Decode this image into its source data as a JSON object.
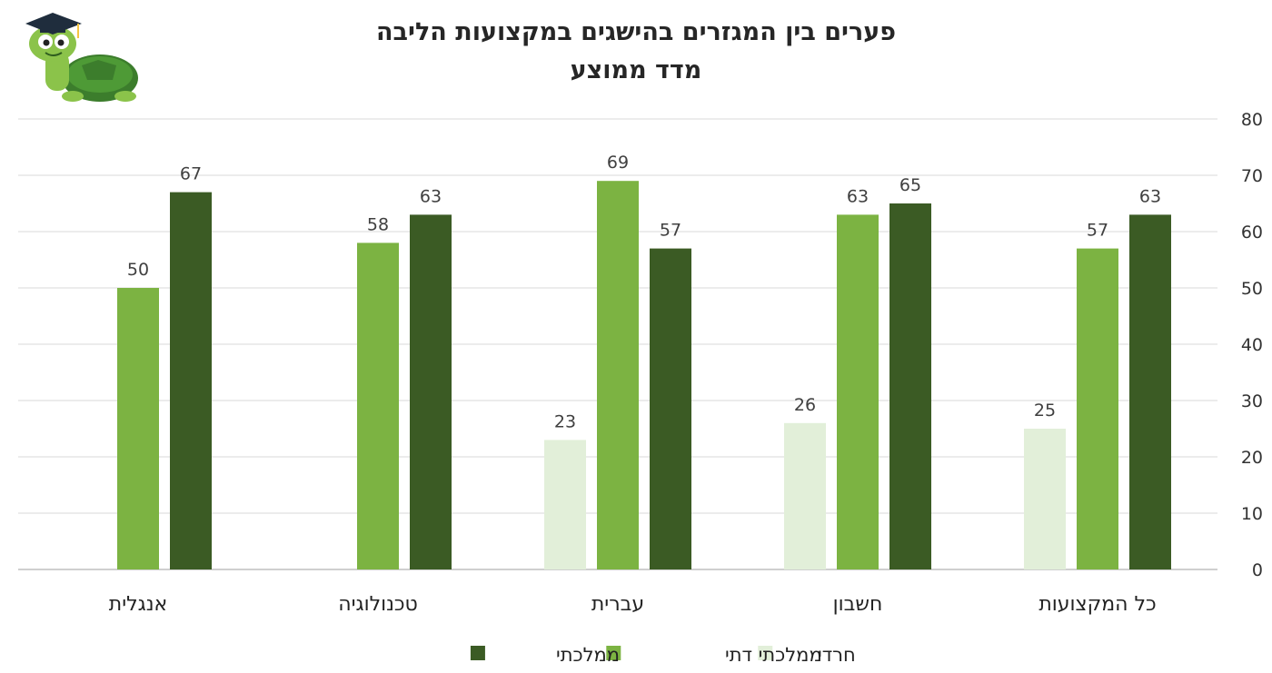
{
  "chart_data": {
    "type": "bar",
    "title": "פערים בין המגזרים בהישגים במקצועות הליבה",
    "subtitle": "מדד ממוצע",
    "categories": [
      "כל המקצועות",
      "חשבון",
      "עברית",
      "טכנולוגיה",
      "אנגלית"
    ],
    "series": [
      {
        "name": "חרדי",
        "color": "#e2efd9",
        "values": [
          25,
          26,
          23,
          null,
          null
        ]
      },
      {
        "name": "ממלכתי דתי",
        "color": "#7cb342",
        "values": [
          57,
          63,
          69,
          58,
          50
        ]
      },
      {
        "name": "ממלכתי",
        "color": "#3b5b24",
        "values": [
          63,
          65,
          57,
          63,
          67
        ]
      }
    ],
    "ylim": [
      0,
      80
    ],
    "yticks": [
      0,
      10,
      20,
      30,
      40,
      50,
      60,
      70,
      80
    ],
    "y_axis_side": "right",
    "category_order": "right-to-left",
    "grid": true,
    "legend_position": "bottom"
  },
  "logo": {
    "icon": "turtle-graduate-icon"
  }
}
